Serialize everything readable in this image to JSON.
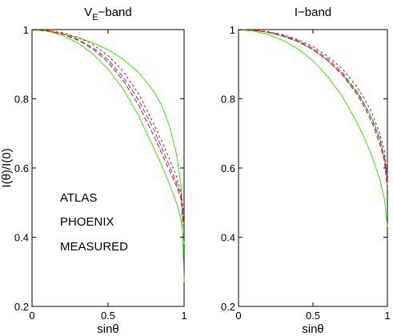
{
  "chart_data": [
    {
      "type": "line",
      "title_main": "V",
      "title_sub": "E",
      "title_rest": "−band",
      "xlabel": "sinθ",
      "ylabel": "I(θ)/I(0)",
      "xlim": [
        0,
        1
      ],
      "ylim": [
        0.2,
        1
      ],
      "xticks": [
        "0",
        "0.5",
        "1"
      ],
      "yticks": [
        "0.2",
        "0.4",
        "0.6",
        "0.8",
        "1"
      ],
      "legend": [
        {
          "label": "ATLAS",
          "color": "#4040ff"
        },
        {
          "label": "PHOENIX",
          "color": "#ff0000"
        },
        {
          "label": "MEASURED",
          "color": "#33ee00"
        }
      ],
      "series": [
        {
          "group": "MEASURED",
          "color": "#33ee00",
          "dash": "",
          "x": [
            0,
            0.1,
            0.2,
            0.3,
            0.4,
            0.5,
            0.6,
            0.7,
            0.8,
            0.85,
            0.9,
            0.95,
            0.98,
            1.0
          ],
          "y": [
            1.0,
            0.995,
            0.988,
            0.977,
            0.962,
            0.942,
            0.914,
            0.877,
            0.822,
            0.783,
            0.727,
            0.64,
            0.55,
            0.27
          ]
        },
        {
          "group": "MEASURED",
          "color": "#33ee00",
          "dash": "",
          "x": [
            0,
            0.1,
            0.2,
            0.3,
            0.4,
            0.5,
            0.6,
            0.7,
            0.8,
            0.85,
            0.9,
            0.95,
            0.98,
            1.0
          ],
          "y": [
            1.0,
            0.996,
            0.983,
            0.962,
            0.93,
            0.886,
            0.828,
            0.752,
            0.658,
            0.61,
            0.558,
            0.5,
            0.45,
            0.38
          ]
        },
        {
          "group": "ATLAS",
          "color": "#4040ff",
          "dash": "6,3",
          "x": [
            0,
            0.1,
            0.2,
            0.3,
            0.4,
            0.5,
            0.6,
            0.7,
            0.8,
            0.85,
            0.9,
            0.95,
            0.98,
            1.0
          ],
          "y": [
            1.0,
            0.997,
            0.988,
            0.972,
            0.948,
            0.913,
            0.863,
            0.797,
            0.712,
            0.662,
            0.61,
            0.558,
            0.52,
            0.44
          ]
        },
        {
          "group": "PHOENIX",
          "color": "#ff0000",
          "dash": "6,3",
          "x": [
            0,
            0.1,
            0.2,
            0.3,
            0.4,
            0.5,
            0.6,
            0.7,
            0.8,
            0.85,
            0.9,
            0.95,
            0.98,
            1.0
          ],
          "y": [
            1.0,
            0.997,
            0.987,
            0.97,
            0.944,
            0.906,
            0.853,
            0.783,
            0.694,
            0.645,
            0.596,
            0.548,
            0.51,
            0.42
          ]
        },
        {
          "group": "PHOENIX",
          "color": "#ff0000",
          "dash": "3,3",
          "x": [
            0,
            0.1,
            0.2,
            0.3,
            0.4,
            0.5,
            0.6,
            0.7,
            0.8,
            0.85,
            0.9,
            0.95,
            0.98,
            1.0
          ],
          "y": [
            1.0,
            0.998,
            0.991,
            0.978,
            0.957,
            0.925,
            0.879,
            0.815,
            0.728,
            0.68,
            0.63,
            0.575,
            0.53,
            0.46
          ]
        }
      ]
    },
    {
      "type": "line",
      "title_main": "I−band",
      "title_sub": "",
      "title_rest": "",
      "xlabel": "sinθ",
      "ylabel": "",
      "xlim": [
        0,
        1
      ],
      "ylim": [
        0.2,
        1
      ],
      "xticks": [
        "0",
        "0.5",
        "1"
      ],
      "yticks": [
        "0.2",
        "0.4",
        "0.6",
        "0.8",
        "1"
      ],
      "legend": [],
      "series": [
        {
          "group": "MEASURED",
          "color": "#33ee00",
          "dash": "",
          "x": [
            0,
            0.1,
            0.2,
            0.3,
            0.4,
            0.5,
            0.6,
            0.7,
            0.8,
            0.85,
            0.9,
            0.95,
            0.98,
            1.0
          ],
          "y": [
            1.0,
            0.996,
            0.986,
            0.969,
            0.944,
            0.91,
            0.864,
            0.805,
            0.728,
            0.682,
            0.63,
            0.565,
            0.51,
            0.43
          ]
        },
        {
          "group": "MEASURED",
          "color": "#33ee00",
          "dash": "",
          "x": [
            0,
            0.1,
            0.2,
            0.3,
            0.4,
            0.5,
            0.6,
            0.7,
            0.8,
            0.85,
            0.9,
            0.95,
            0.98,
            1.0
          ],
          "y": [
            1.0,
            0.998,
            0.992,
            0.981,
            0.965,
            0.942,
            0.911,
            0.87,
            0.815,
            0.78,
            0.74,
            0.685,
            0.63,
            0.55
          ]
        },
        {
          "group": "ATLAS",
          "color": "#4040ff",
          "dash": "6,3",
          "x": [
            0,
            0.1,
            0.2,
            0.3,
            0.4,
            0.5,
            0.6,
            0.7,
            0.8,
            0.85,
            0.9,
            0.95,
            0.98,
            1.0
          ],
          "y": [
            1.0,
            0.998,
            0.993,
            0.983,
            0.968,
            0.946,
            0.916,
            0.875,
            0.818,
            0.782,
            0.738,
            0.68,
            0.63,
            0.56
          ]
        },
        {
          "group": "PHOENIX",
          "color": "#ff0000",
          "dash": "6,3",
          "x": [
            0,
            0.1,
            0.2,
            0.3,
            0.4,
            0.5,
            0.6,
            0.7,
            0.8,
            0.85,
            0.9,
            0.95,
            0.98,
            1.0
          ],
          "y": [
            1.0,
            0.998,
            0.992,
            0.981,
            0.965,
            0.942,
            0.91,
            0.868,
            0.81,
            0.773,
            0.728,
            0.668,
            0.62,
            0.54
          ]
        },
        {
          "group": "PHOENIX",
          "color": "#ff0000",
          "dash": "3,3",
          "x": [
            0,
            0.1,
            0.2,
            0.3,
            0.4,
            0.5,
            0.6,
            0.7,
            0.8,
            0.85,
            0.9,
            0.95,
            0.98,
            1.0
          ],
          "y": [
            1.0,
            0.999,
            0.994,
            0.985,
            0.971,
            0.951,
            0.923,
            0.885,
            0.832,
            0.797,
            0.755,
            0.698,
            0.65,
            0.58
          ]
        }
      ]
    }
  ]
}
